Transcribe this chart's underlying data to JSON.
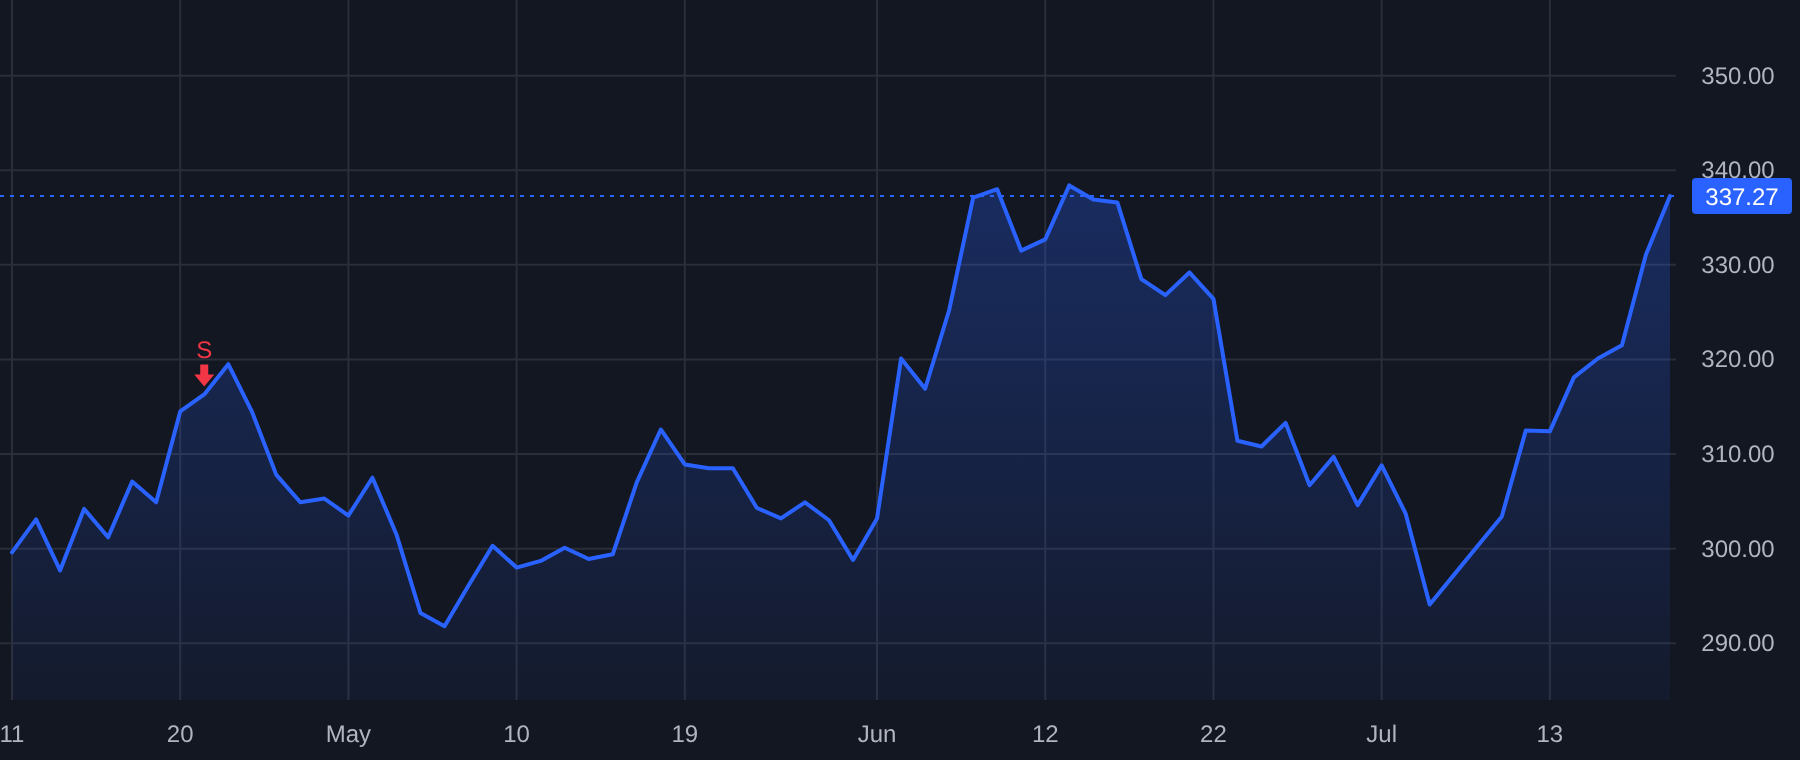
{
  "chart_data": {
    "type": "area",
    "categories": [
      "11",
      null,
      null,
      null,
      null,
      null,
      null,
      "20",
      null,
      null,
      null,
      null,
      null,
      null,
      "May",
      null,
      null,
      null,
      null,
      null,
      null,
      "10",
      null,
      null,
      null,
      null,
      null,
      null,
      "19",
      null,
      null,
      null,
      null,
      null,
      null,
      null,
      "Jun",
      null,
      null,
      null,
      null,
      null,
      null,
      "12",
      null,
      null,
      null,
      null,
      null,
      null,
      "22",
      null,
      null,
      null,
      null,
      null,
      null,
      "Jul",
      null,
      null,
      null,
      null,
      null,
      null,
      "13",
      null,
      null,
      null,
      null,
      null
    ],
    "series": [
      {
        "color": "#2962ff",
        "values": [
          299.6,
          303.1,
          297.7,
          304.2,
          301.2,
          307.1,
          304.9,
          314.5,
          316.3,
          319.5,
          314.4,
          307.8,
          304.9,
          305.3,
          303.5,
          307.5,
          301.5,
          293.2,
          291.8,
          296.1,
          300.3,
          298.0,
          298.7,
          300.1,
          298.9,
          299.4,
          307.0,
          312.6,
          308.9,
          308.5,
          308.5,
          304.3,
          303.2,
          304.9,
          303.0,
          298.8,
          303.2,
          320.1,
          316.9,
          325.2,
          337.1,
          338.0,
          331.5,
          332.7,
          338.4,
          336.9,
          336.6,
          328.5,
          326.8,
          329.2,
          326.4,
          311.4,
          310.8,
          313.3,
          306.7,
          309.7,
          304.6,
          308.8,
          303.7,
          294.1,
          297.2,
          300.3,
          303.4,
          312.5,
          312.4,
          318.1,
          320.1,
          321.5,
          331.1,
          337.27
        ]
      },
      {
        "type": "scatter",
        "name": "S",
        "color": "#f23645",
        "marker": "triangle",
        "values": [
          null,
          null,
          null,
          null,
          null,
          null,
          null,
          null,
          318.2,
          null,
          null,
          null,
          null,
          null,
          null,
          null,
          null,
          null,
          null,
          null,
          null,
          null,
          null,
          null,
          null,
          null,
          null,
          null,
          null,
          null,
          null,
          null,
          null,
          null,
          null,
          null,
          null,
          null,
          null,
          null,
          null,
          null,
          null,
          null,
          null,
          null,
          null,
          null,
          null,
          null,
          null,
          null,
          null,
          null,
          null,
          null,
          null,
          null,
          null,
          null,
          null,
          null,
          null,
          null,
          null,
          null,
          null,
          null,
          null,
          null
        ]
      }
    ],
    "ylim": [
      284,
      358
    ],
    "yticks": [
      {
        "value": 290,
        "label": "290.00"
      },
      {
        "value": 300,
        "label": "300.00"
      },
      {
        "value": 310,
        "label": "310.00"
      },
      {
        "value": 320,
        "label": "320.00"
      },
      {
        "value": 330,
        "label": "330.00"
      },
      {
        "value": 340,
        "label": "340.00"
      },
      {
        "value": 350,
        "label": "350.00"
      }
    ],
    "ref_lines": [
      {
        "axis": "y",
        "value": 337.27,
        "label": "337.27",
        "color": "#2962ff",
        "line_style": "dotted"
      }
    ],
    "grid": true,
    "line_style": "solid"
  }
}
